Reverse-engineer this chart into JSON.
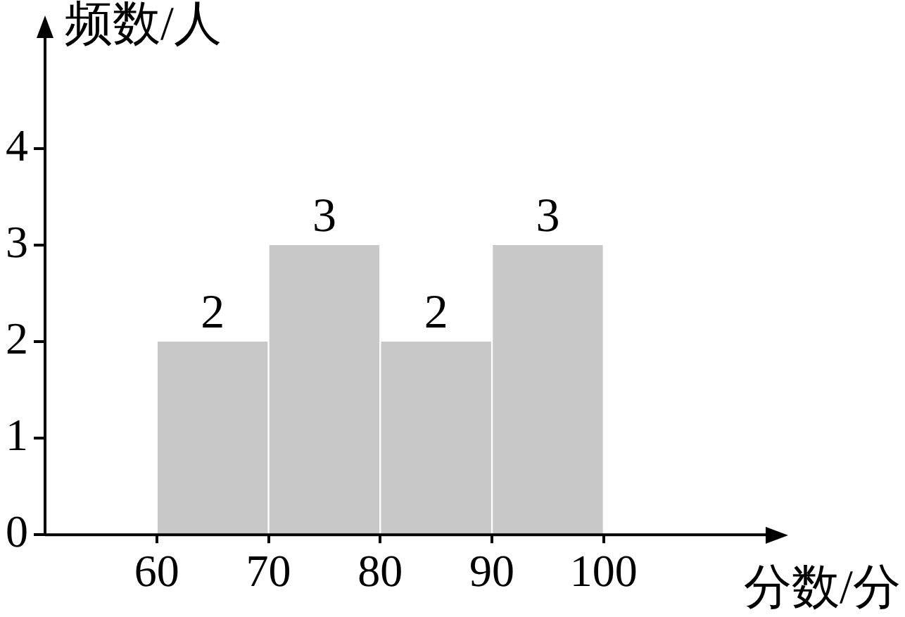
{
  "chart_data": {
    "type": "histogram",
    "xlabel": "分数/分",
    "ylabel": "频数/人",
    "bins": [
      60,
      70,
      80,
      90,
      100
    ],
    "values": [
      2,
      3,
      2,
      3
    ],
    "color": "#c8c8c8",
    "data_labels": true,
    "xlim": [
      50,
      115
    ],
    "xticks": [
      60,
      70,
      80,
      90,
      100
    ],
    "ylim": [
      0,
      5.2
    ],
    "yticks": [
      0,
      1,
      2,
      3,
      4
    ],
    "grid": false,
    "legend": false
  }
}
